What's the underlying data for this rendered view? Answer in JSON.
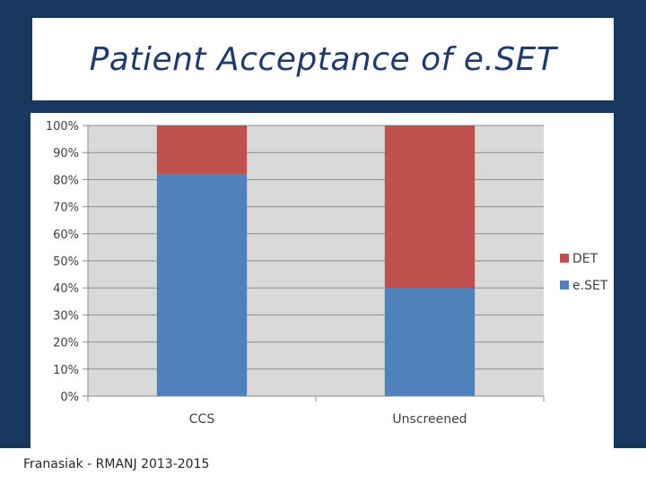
{
  "colors": {
    "background": "#17375e",
    "title": "#1f3a6e",
    "plot_area": "#d9d9d9",
    "gridline": "#8c8c8c",
    "series_eset": "#4f81bd",
    "series_det": "#c0504d"
  },
  "slide": {
    "title": "Patient Acceptance of e.SET",
    "footer": "Franasiak - RMANJ 2013-2015"
  },
  "chart_data": {
    "type": "bar",
    "stacked": true,
    "percent": true,
    "title": "",
    "xlabel": "",
    "ylabel": "",
    "ylim": [
      0,
      100
    ],
    "yticks": [
      0,
      10,
      20,
      30,
      40,
      50,
      60,
      70,
      80,
      90,
      100
    ],
    "ytick_labels": [
      "0%",
      "10%",
      "20%",
      "30%",
      "40%",
      "50%",
      "60%",
      "70%",
      "80%",
      "90%",
      "100%"
    ],
    "grid": true,
    "legend_position": "right",
    "categories": [
      "CCS",
      "Unscreened"
    ],
    "series": [
      {
        "name": "e.SET",
        "values": [
          82,
          40
        ]
      },
      {
        "name": "DET",
        "values": [
          18,
          60
        ]
      }
    ],
    "legend_order": [
      "DET",
      "e.SET"
    ]
  }
}
